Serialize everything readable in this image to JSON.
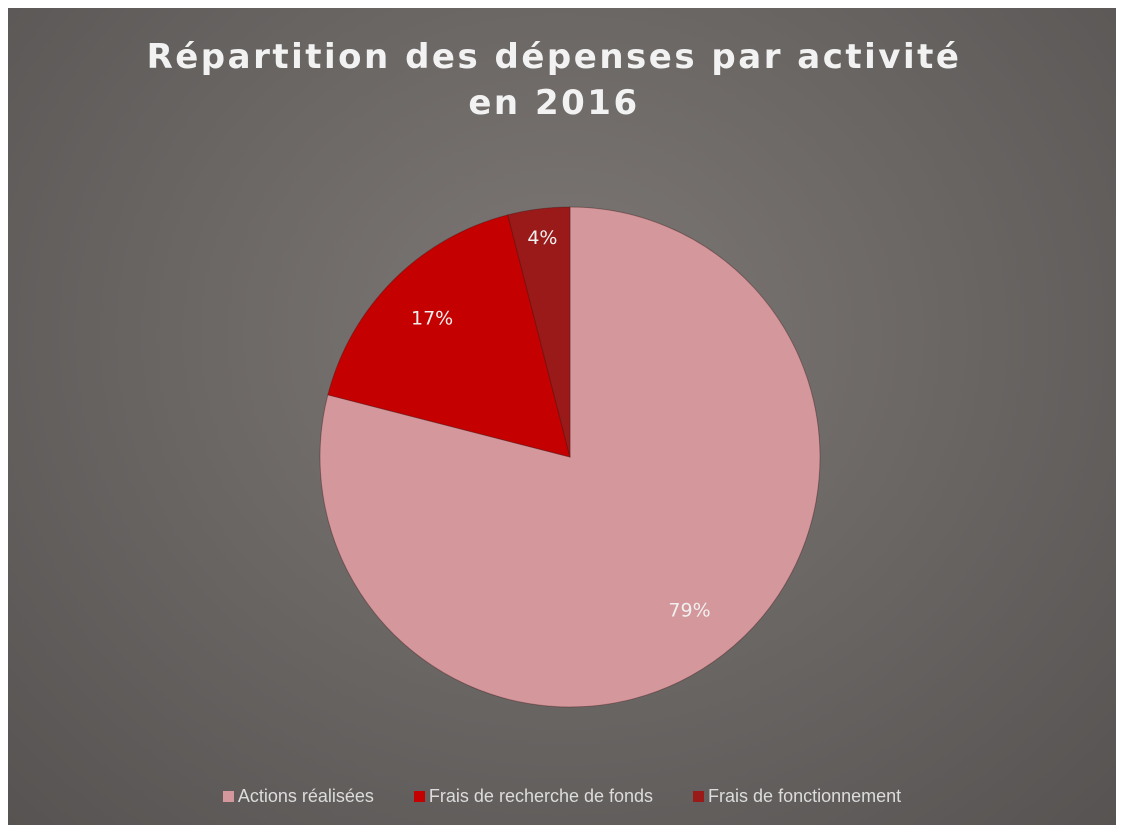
{
  "chart_data": {
    "type": "pie",
    "title": "Répartition des dépenses par activité en 2016",
    "categories": [
      "Actions réalisées",
      "Frais de recherche de fonds",
      "Frais de fonctionnement"
    ],
    "values": [
      79,
      17,
      4
    ],
    "value_labels": [
      "79%",
      "17%",
      "4%"
    ],
    "colors": [
      "#d4979b",
      "#c40000",
      "#9a1a1a"
    ],
    "legend": "bottom"
  }
}
